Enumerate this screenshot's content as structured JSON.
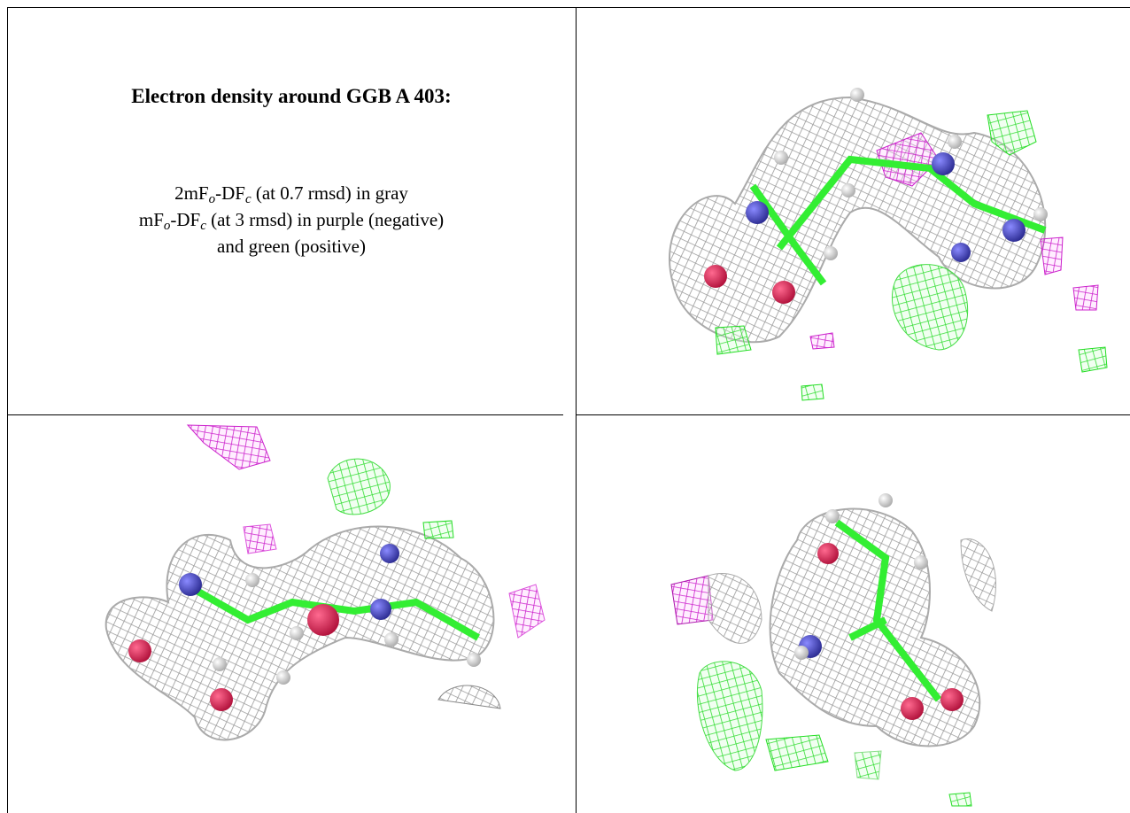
{
  "caption": {
    "title": "Electron density around GGB A 403:",
    "lines": [
      [
        "2mF",
        "o",
        "-DF",
        "c",
        " (at 0.7 rmsd) in gray"
      ],
      [
        "mF",
        "o",
        "-DF",
        "c",
        " (at 3 rmsd) in purple (negative)"
      ],
      [
        "and green (positive)"
      ]
    ]
  }
}
